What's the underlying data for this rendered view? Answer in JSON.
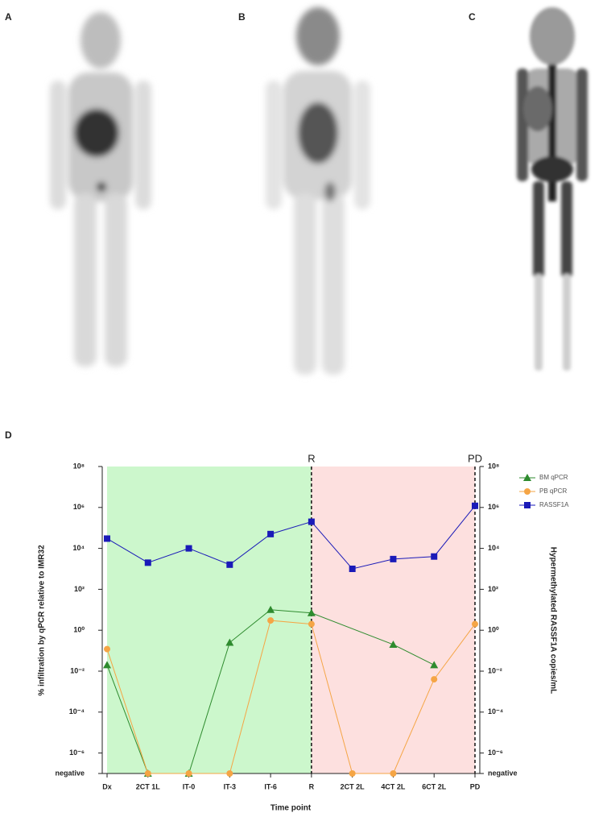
{
  "panels": {
    "labels": [
      "A",
      "B",
      "C",
      "D"
    ]
  },
  "chart_data": {
    "type": "line",
    "log_scale": true,
    "y_label": "% infiltration by qPCR relative to IMR32",
    "y2_label": "Hypermethylated RASSF1A copies/mL",
    "x_label": "Time point",
    "categories": [
      "Dx",
      "2CT 1L",
      "IT-0",
      "IT-3",
      "IT-6",
      "R",
      "2CT 2L",
      "4CT 2L",
      "6CT 2L",
      "PD"
    ],
    "ylim": [
      1e-07,
      100000000.0
    ],
    "yticks": [
      {
        "value": 1e-07,
        "label": "negative"
      },
      {
        "value": 1e-06,
        "label": "10⁻⁶"
      },
      {
        "value": 0.0001,
        "label": "10⁻⁴"
      },
      {
        "value": 0.01,
        "label": "10⁻²"
      },
      {
        "value": 1,
        "label": "10⁰"
      },
      {
        "value": 100,
        "label": "10²"
      },
      {
        "value": 10000,
        "label": "10⁴"
      },
      {
        "value": 1000000,
        "label": "10⁶"
      },
      {
        "value": 100000000,
        "label": "10⁸"
      }
    ],
    "y2lim": [
      1e-07,
      100000000.0
    ],
    "y2ticks": [
      {
        "value": 1e-07,
        "label": "negative"
      },
      {
        "value": 1e-06,
        "label": "10⁻⁶"
      },
      {
        "value": 0.0001,
        "label": "10⁻⁴"
      },
      {
        "value": 0.01,
        "label": "10⁻²"
      },
      {
        "value": 1,
        "label": "10⁰"
      },
      {
        "value": 100,
        "label": "10²"
      },
      {
        "value": 10000,
        "label": "10⁴"
      },
      {
        "value": 1000000,
        "label": "10⁶"
      },
      {
        "value": 100000000,
        "label": "10⁸"
      }
    ],
    "phases": [
      {
        "from": "Dx",
        "to": "R",
        "color": "#ccf7cc"
      },
      {
        "from": "R",
        "to": "PD",
        "color": "#fde0df"
      }
    ],
    "vlines": [
      {
        "x": "R",
        "label": "R"
      },
      {
        "x": "PD",
        "label": "PD"
      }
    ],
    "legend": "top-right",
    "series": [
      {
        "name": "BM qPCR",
        "color": "#2e8b2e",
        "marker": "triangle",
        "x": [
          "Dx",
          "2CT 1L",
          "IT-0",
          "IT-3",
          "IT-6",
          "R",
          "4CT 2L",
          "6CT 2L"
        ],
        "values": [
          0.02,
          1e-07,
          1e-07,
          0.25,
          10,
          7,
          0.2,
          0.02
        ]
      },
      {
        "name": "PB qPCR",
        "color": "#f5a545",
        "marker": "circle",
        "x": [
          "Dx",
          "2CT 1L",
          "IT-0",
          "IT-3",
          "IT-6",
          "R",
          "2CT 2L",
          "4CT 2L",
          "6CT 2L",
          "PD"
        ],
        "values": [
          0.12,
          1e-07,
          1e-07,
          1e-07,
          3,
          2,
          1e-07,
          1e-07,
          0.004,
          2
        ]
      },
      {
        "name": "RASSF1A",
        "color": "#1a1ab8",
        "marker": "square",
        "axis": "y2",
        "x": [
          "Dx",
          "2CT 1L",
          "IT-0",
          "IT-3",
          "IT-6",
          "R",
          "2CT 2L",
          "4CT 2L",
          "6CT 2L",
          "PD"
        ],
        "values": [
          30000,
          2000,
          10000,
          1600,
          50000,
          200000,
          1000,
          3000,
          4000,
          1200000
        ]
      }
    ]
  }
}
